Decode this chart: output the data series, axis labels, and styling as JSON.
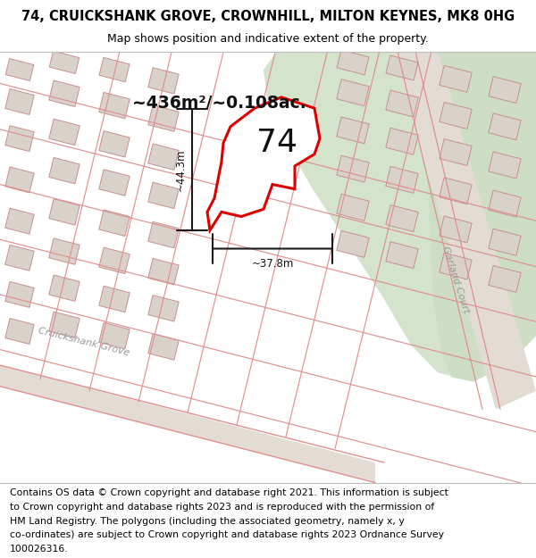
{
  "title_line1": "74, CRUICKSHANK GROVE, CROWNHILL, MILTON KEYNES, MK8 0HG",
  "title_line2": "Map shows position and indicative extent of the property.",
  "footer_text": "Contains OS data © Crown copyright and database right 2021. This information is subject to Crown copyright and database rights 2023 and is reproduced with the permission of HM Land Registry. The polygons (including the associated geometry, namely x, y co-ordinates) are subject to Crown copyright and database rights 2023 Ordnance Survey 100026316.",
  "area_label": "~436m²/~0.108ac.",
  "number_label": "74",
  "dim_vertical": "~44.3m",
  "dim_horizontal": "~37.8m",
  "bg_color": "#f0ebe5",
  "green_area_color": "#d4e3cc",
  "road_fill_color": "#e8e0d8",
  "building_fill": "#d8d2cb",
  "building_edge": "#c8908888",
  "plot_outline_color": "#dd0000",
  "dim_line_color": "#1a1a1a",
  "road_line_color": "#e09090",
  "street_label_1": "Cruickshank Grove",
  "street_label_2": "Garland Court",
  "title_fontsize": 10.5,
  "subtitle_fontsize": 9,
  "footer_fontsize": 7.8,
  "map_bg": "#f0ebe5"
}
